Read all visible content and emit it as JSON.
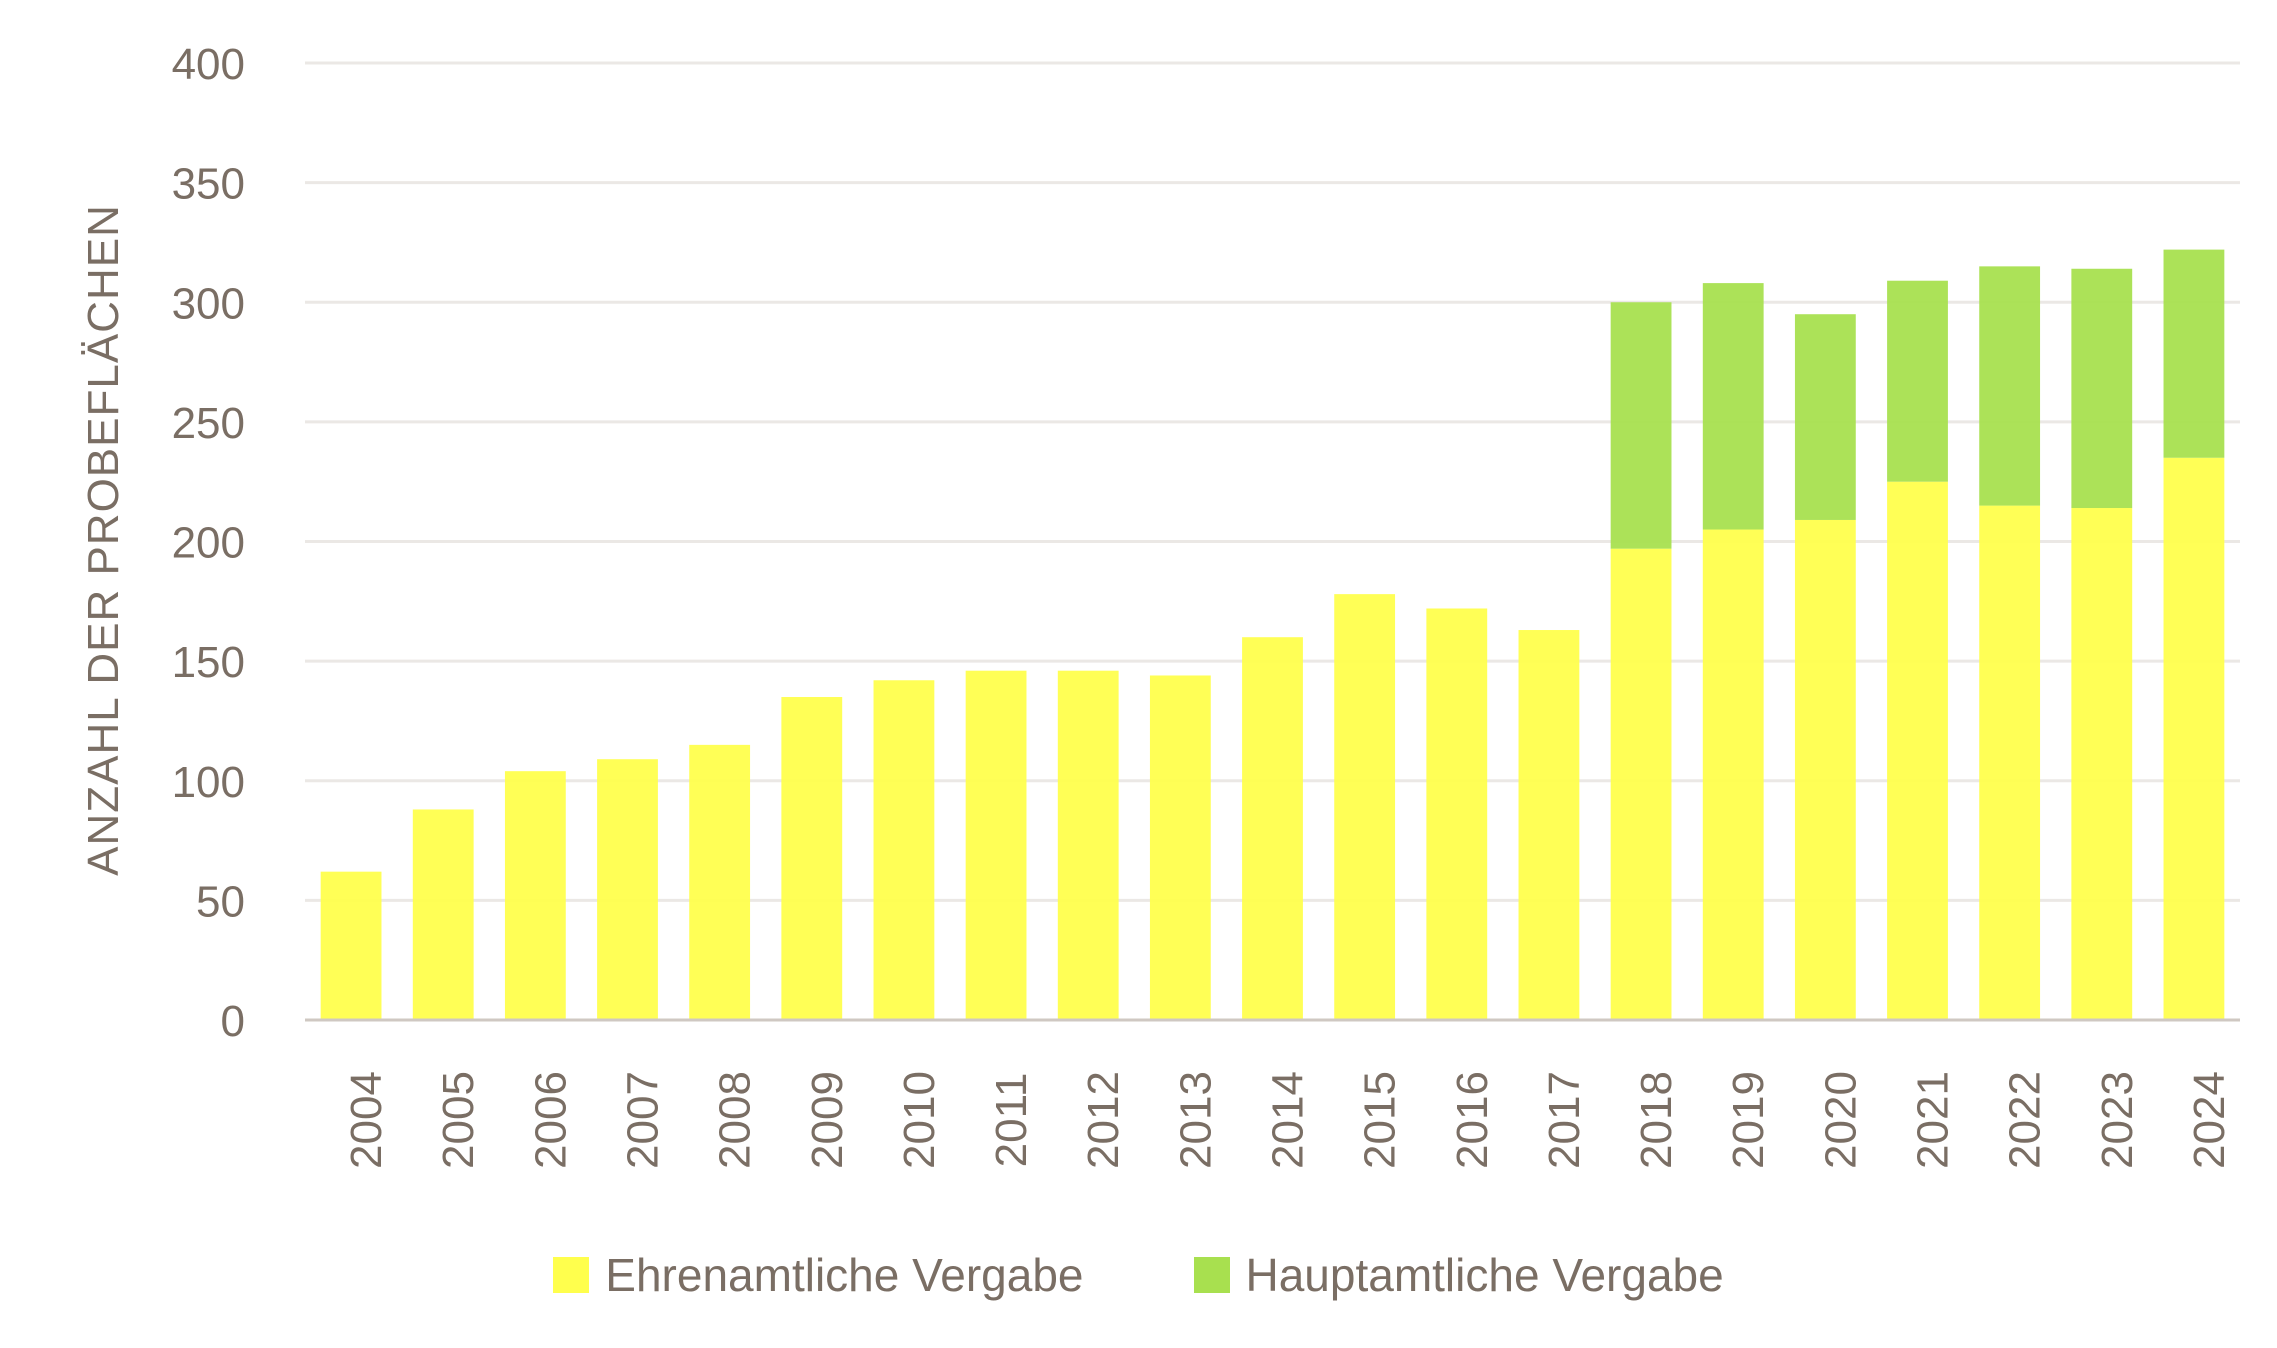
{
  "chart_data": {
    "type": "bar",
    "stacked": true,
    "title": "",
    "xlabel": "",
    "ylabel": "ANZAHL DER PROBEFLÄCHEN",
    "ylim": [
      0,
      400
    ],
    "yticks": [
      0,
      50,
      100,
      150,
      200,
      250,
      300,
      350,
      400
    ],
    "grid": true,
    "legend_position": "bottom",
    "categories": [
      "2004",
      "2005",
      "2006",
      "2007",
      "2008",
      "2009",
      "2010",
      "2011",
      "2012",
      "2013",
      "2014",
      "2015",
      "2016",
      "2017",
      "2018",
      "2019",
      "2020",
      "2021",
      "2022",
      "2023",
      "2024"
    ],
    "series": [
      {
        "name": "Ehrenamtliche Vergabe",
        "color": "#ffff4d",
        "values": [
          62,
          88,
          104,
          109,
          115,
          135,
          142,
          146,
          146,
          144,
          160,
          178,
          172,
          163,
          197,
          205,
          209,
          225,
          215,
          214,
          235
        ]
      },
      {
        "name": "Hauptamtliche Vergabe",
        "color": "#a8e04f",
        "values": [
          0,
          0,
          0,
          0,
          0,
          0,
          0,
          0,
          0,
          0,
          0,
          0,
          0,
          0,
          103,
          103,
          86,
          84,
          100,
          100,
          87
        ]
      }
    ]
  }
}
